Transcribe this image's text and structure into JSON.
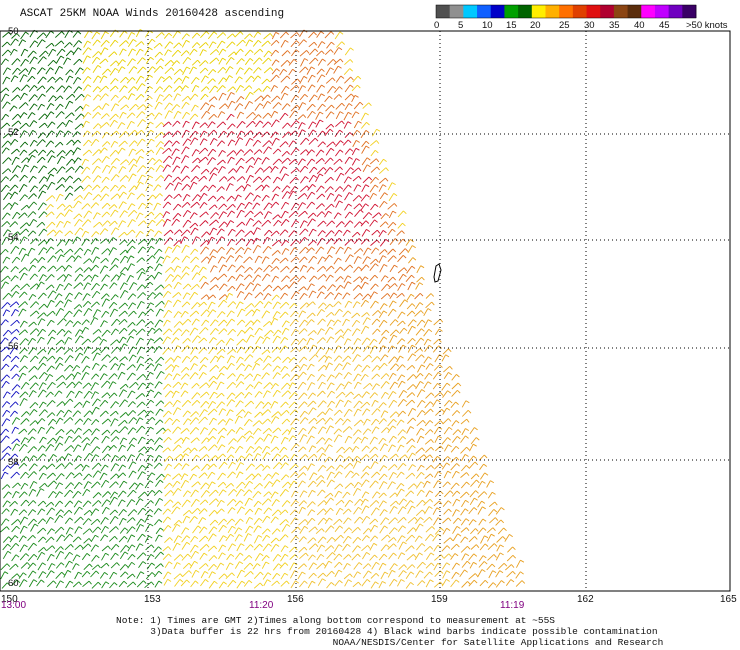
{
  "title": "ASCAT 25KM NOAA Winds 20160428 ascending",
  "colorbar": {
    "labels": [
      "0",
      "5",
      "10",
      "15",
      "20",
      "25",
      "30",
      "35",
      "40",
      "45",
      ">50 knots"
    ],
    "colors": [
      "#505050",
      "#909090",
      "#00c8ff",
      "#1060ff",
      "#0000c8",
      "#00a000",
      "#006400",
      "#ffee00",
      "#ffb000",
      "#ff7000",
      "#e04000",
      "#e01010",
      "#b00030",
      "#8b4513",
      "#5a2d0c",
      "#ff00ff",
      "#c000ff",
      "#7000c0",
      "#3a0066"
    ]
  },
  "lat_labels": [
    "50",
    "52",
    "54",
    "56",
    "58",
    "60"
  ],
  "lon_labels": [
    "150",
    "153",
    "156",
    "159",
    "162",
    "165"
  ],
  "times": [
    "13:00",
    "11:20",
    "11:19"
  ],
  "notes": [
    "Note: 1) Times are GMT 2)Times along bottom correspond to measurement at ~55S",
    "      3)Data buffer is 22 hrs from 20160428 4) Black wind barbs indicate possible contamination",
    "                                      NOAA/NESDIS/Center for Satellite Applications and Research"
  ]
}
